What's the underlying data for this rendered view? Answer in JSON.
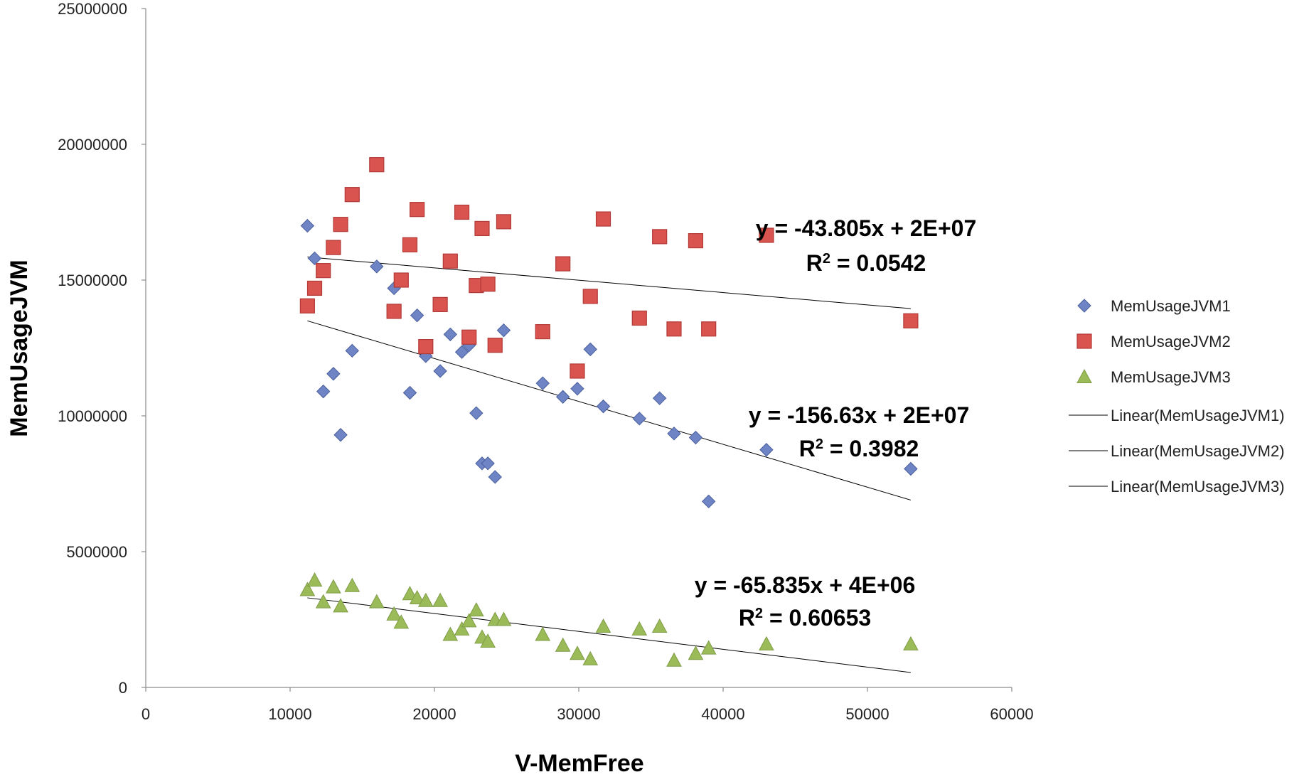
{
  "chart_data": {
    "type": "scatter",
    "xlabel": "V-MemFree",
    "ylabel": "MemUsageJVM",
    "xlim": [
      0,
      60000
    ],
    "ylim": [
      0,
      25000000
    ],
    "xticks": [
      0,
      10000,
      20000,
      30000,
      40000,
      50000,
      60000
    ],
    "yticks": [
      0,
      5000000,
      10000000,
      15000000,
      20000000,
      25000000
    ],
    "grid": false,
    "legend_position": "right",
    "series": [
      {
        "name": "MemUsageJVM1",
        "marker": "diamond",
        "color": "#6f84c4",
        "points": [
          [
            11200,
            17000000
          ],
          [
            11700,
            15800000
          ],
          [
            12300,
            10900000
          ],
          [
            13000,
            11550000
          ],
          [
            13500,
            9300000
          ],
          [
            14300,
            12400000
          ],
          [
            16000,
            15500000
          ],
          [
            17200,
            14700000
          ],
          [
            18300,
            10850000
          ],
          [
            18800,
            13700000
          ],
          [
            19400,
            12200000
          ],
          [
            20400,
            11650000
          ],
          [
            21100,
            13000000
          ],
          [
            21900,
            12350000
          ],
          [
            22400,
            12600000
          ],
          [
            22900,
            10100000
          ],
          [
            23300,
            8250000
          ],
          [
            23700,
            8250000
          ],
          [
            24200,
            7750000
          ],
          [
            24800,
            13150000
          ],
          [
            27500,
            11200000
          ],
          [
            28900,
            10700000
          ],
          [
            29900,
            11000000
          ],
          [
            30800,
            12450000
          ],
          [
            31700,
            10350000
          ],
          [
            34200,
            9900000
          ],
          [
            35600,
            10650000
          ],
          [
            36600,
            9350000
          ],
          [
            38100,
            9200000
          ],
          [
            39000,
            6850000
          ],
          [
            43000,
            8750000
          ],
          [
            53000,
            8050000
          ]
        ]
      },
      {
        "name": "MemUsageJVM2",
        "marker": "square",
        "color": "#d9534f",
        "points": [
          [
            11200,
            14050000
          ],
          [
            11700,
            14700000
          ],
          [
            12300,
            15350000
          ],
          [
            13000,
            16200000
          ],
          [
            13500,
            17050000
          ],
          [
            14300,
            18150000
          ],
          [
            16000,
            19250000
          ],
          [
            17200,
            13850000
          ],
          [
            17700,
            15000000
          ],
          [
            18300,
            16300000
          ],
          [
            18800,
            17600000
          ],
          [
            19400,
            12550000
          ],
          [
            20400,
            14100000
          ],
          [
            21100,
            15700000
          ],
          [
            21900,
            17500000
          ],
          [
            22400,
            12900000
          ],
          [
            22900,
            14800000
          ],
          [
            23300,
            16900000
          ],
          [
            23700,
            14850000
          ],
          [
            24200,
            12600000
          ],
          [
            24800,
            17150000
          ],
          [
            27500,
            13100000
          ],
          [
            28900,
            15600000
          ],
          [
            29900,
            11650000
          ],
          [
            30800,
            14400000
          ],
          [
            31700,
            17250000
          ],
          [
            34200,
            13600000
          ],
          [
            35600,
            16600000
          ],
          [
            36600,
            13200000
          ],
          [
            38100,
            16450000
          ],
          [
            39000,
            13200000
          ],
          [
            43000,
            16650000
          ],
          [
            53000,
            13500000
          ]
        ]
      },
      {
        "name": "MemUsageJVM3",
        "marker": "triangle",
        "color": "#9bbb59",
        "points": [
          [
            11200,
            3600000
          ],
          [
            11700,
            3950000
          ],
          [
            12300,
            3150000
          ],
          [
            13000,
            3700000
          ],
          [
            13500,
            3000000
          ],
          [
            14300,
            3750000
          ],
          [
            16000,
            3150000
          ],
          [
            17200,
            2700000
          ],
          [
            17700,
            2400000
          ],
          [
            18300,
            3450000
          ],
          [
            18800,
            3300000
          ],
          [
            19400,
            3200000
          ],
          [
            20400,
            3200000
          ],
          [
            21100,
            1950000
          ],
          [
            21900,
            2150000
          ],
          [
            22400,
            2450000
          ],
          [
            22900,
            2850000
          ],
          [
            23300,
            1850000
          ],
          [
            23700,
            1700000
          ],
          [
            24200,
            2500000
          ],
          [
            24800,
            2500000
          ],
          [
            27500,
            1950000
          ],
          [
            28900,
            1550000
          ],
          [
            29900,
            1250000
          ],
          [
            30800,
            1050000
          ],
          [
            31700,
            2250000
          ],
          [
            34200,
            2150000
          ],
          [
            35600,
            2250000
          ],
          [
            36600,
            1000000
          ],
          [
            38100,
            1250000
          ],
          [
            39000,
            1450000
          ],
          [
            43000,
            1600000
          ],
          [
            53000,
            1600000
          ]
        ]
      }
    ],
    "trendlines": [
      {
        "name": "Linear(MemUsageJVM1)",
        "x": [
          11200,
          53000
        ],
        "y": [
          13500000,
          6900000
        ],
        "equation": "y = -156.63x + 2E+07",
        "r2_prefix": "R",
        "r2_sup": "2",
        "r2_value": " = 0.3982"
      },
      {
        "name": "Linear(MemUsageJVM2)",
        "x": [
          11200,
          53000
        ],
        "y": [
          15850000,
          13950000
        ],
        "equation": "y = -43.805x + 2E+07",
        "r2_prefix": "R",
        "r2_sup": "2",
        "r2_value": " = 0.0542"
      },
      {
        "name": "Linear(MemUsageJVM3)",
        "x": [
          11200,
          53000
        ],
        "y": [
          3300000,
          550000
        ],
        "equation": "y = -65.835x + 4E+06",
        "r2_prefix": "R",
        "r2_sup": "2",
        "r2_value": " = 0.60653"
      }
    ]
  }
}
